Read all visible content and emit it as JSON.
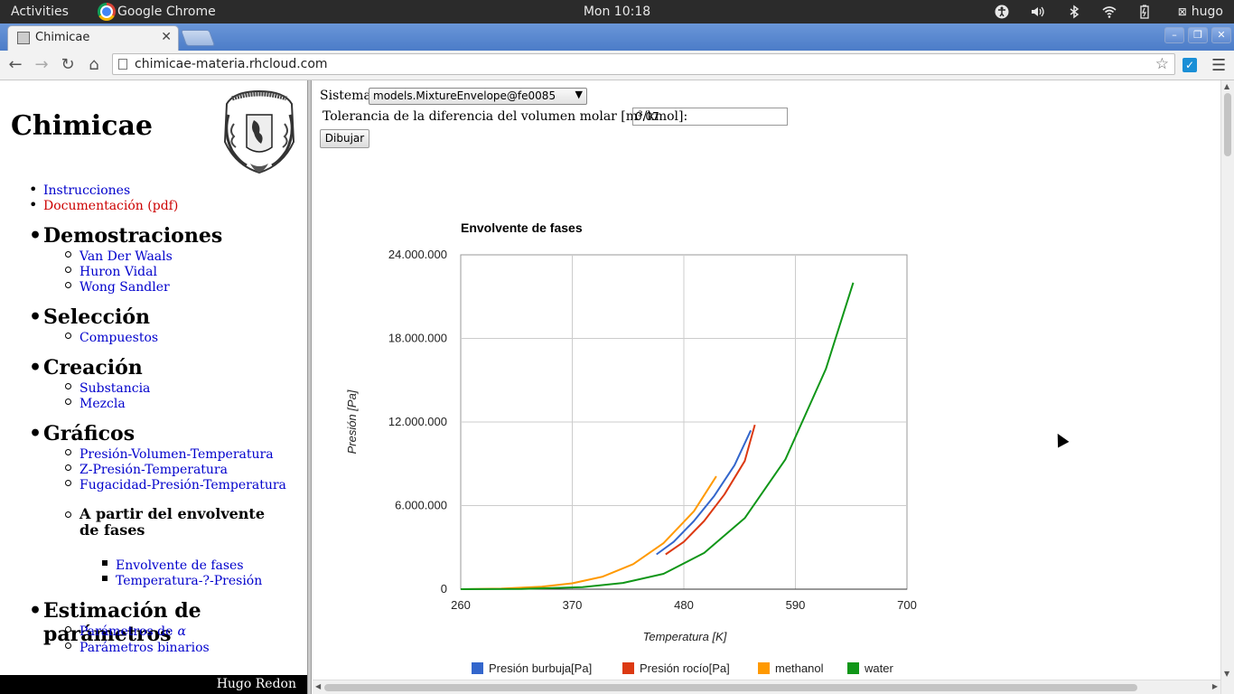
{
  "topbar": {
    "activities": "Activities",
    "app_name": "Google Chrome",
    "clock": "Mon 10:18",
    "user": "hugo"
  },
  "browser": {
    "tab_title": "Chimicae",
    "url": "chimicae-materia.rhcloud.com"
  },
  "sidebar": {
    "site_title": "Chimicae",
    "links_top": [
      "Instrucciones",
      "Documentación (pdf)"
    ],
    "demostraciones": {
      "heading": "Demostraciones",
      "items": [
        "Van Der Waals",
        "Huron Vidal",
        "Wong Sandler"
      ]
    },
    "seleccion": {
      "heading": "Selección",
      "items": [
        "Compuestos"
      ]
    },
    "creacion": {
      "heading": "Creación",
      "items": [
        "Substancia",
        "Mezcla"
      ]
    },
    "graficos": {
      "heading": "Gráficos",
      "items": [
        "Presión-Volumen-Temperatura",
        "Z-Presión-Temperatura",
        "Fugacidad-Presión-Temperatura"
      ],
      "sub_heading": "A partir del envolvente de fases",
      "sub_items": [
        "Envolvente de fases",
        "Temperatura-?-Presión"
      ]
    },
    "estimacion": {
      "heading": "Estimación de parámetros",
      "items": [
        "Parámetros de",
        "Parámetros binarios"
      ],
      "alpha": "α"
    },
    "footer": "Hugo Redon"
  },
  "form": {
    "sistema_label": "Sistema:",
    "sistema_value": "models.MixtureEnvelope@fe0085",
    "tolerancia_label": "Tolerancia de la diferencia del volumen molar [m³/kmol]:",
    "tolerancia_value": "0.07",
    "dibujar": "Dibujar"
  },
  "colors": {
    "blue": "#3366cc",
    "red": "#dc3912",
    "orange": "#ff9900",
    "green": "#109618"
  },
  "chart_data": {
    "type": "line",
    "title": "Envolvente de fases",
    "xlabel": "Temperatura [K]",
    "ylabel": "Presión [Pa]",
    "xlim": [
      260,
      700
    ],
    "ylim": [
      0,
      24000000
    ],
    "xticks": [
      "260",
      "370",
      "480",
      "590",
      "700"
    ],
    "yticks": [
      "0",
      "6.000.000",
      "12.000.000",
      "18.000.000",
      "24.000.000"
    ],
    "grid": true,
    "legend_position": "bottom",
    "series": [
      {
        "name": "Presión burbuja[Pa]",
        "color": "#3366cc",
        "x": [
          453,
          470,
          490,
          510,
          530,
          546
        ],
        "y": [
          2500000,
          3400000,
          4900000,
          6700000,
          8900000,
          11400000
        ]
      },
      {
        "name": "Presión rocío[Pa]",
        "color": "#dc3912",
        "x": [
          462,
          480,
          500,
          520,
          540,
          550
        ],
        "y": [
          2500000,
          3400000,
          4900000,
          6800000,
          9200000,
          11800000
        ]
      },
      {
        "name": "methanol",
        "color": "#ff9900",
        "x": [
          260,
          300,
          340,
          370,
          400,
          430,
          460,
          490,
          512
        ],
        "y": [
          0,
          40000,
          180000,
          420000,
          900000,
          1800000,
          3300000,
          5600000,
          8100000
        ]
      },
      {
        "name": "water",
        "color": "#109618",
        "x": [
          260,
          320,
          380,
          420,
          460,
          500,
          540,
          580,
          620,
          647
        ],
        "y": [
          0,
          20000,
          150000,
          450000,
          1100000,
          2600000,
          5100000,
          9300000,
          15800000,
          22000000
        ]
      }
    ]
  }
}
